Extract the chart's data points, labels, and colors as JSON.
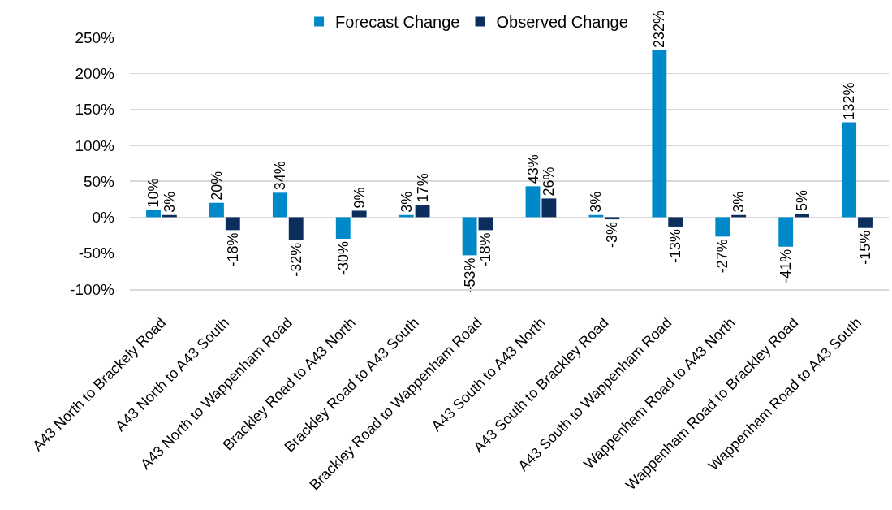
{
  "chart_data": {
    "type": "bar",
    "categories": [
      "A43 North to Brackely Road",
      "A43 North to A43 South",
      "A43 North to Wappenham Road",
      "Brackley Road to A43 North",
      "Brackley Road to A43 South",
      "Brackley Road to Wappenham Road",
      "A43 South to A43 North",
      "A43 South to Brackley Road",
      "A43 South to Wappenham Road",
      "Wappenham Road to A43 North",
      "Wappenham Road to Brackley Road",
      "Wappenham Road to A43 South"
    ],
    "series": [
      {
        "name": "Forecast Change",
        "color": "#0089c9",
        "values": [
          10,
          20,
          34,
          -30,
          3,
          -53,
          43,
          3,
          232,
          -27,
          -41,
          132
        ],
        "value_labels": [
          "10%",
          "20%",
          "34%",
          "-30%",
          "3%",
          "-53%",
          "43%",
          "3%",
          "232%",
          "-27%",
          "-41%",
          "132%"
        ]
      },
      {
        "name": "Observed Change",
        "color": "#0b2e5c",
        "values": [
          3,
          -18,
          -32,
          9,
          17,
          -18,
          26,
          -3,
          -13,
          3,
          5,
          -15
        ],
        "value_labels": [
          "3%",
          "-18%",
          "-32%",
          "9%",
          "17%",
          "-18%",
          "26%",
          "-3%",
          "-13%",
          "3%",
          "5%",
          "-15%"
        ]
      }
    ],
    "ylim": [
      -100,
      250
    ],
    "yticks": [
      {
        "value": -100,
        "label": "-100%"
      },
      {
        "value": -50,
        "label": "-50%"
      },
      {
        "value": 0,
        "label": "0%"
      },
      {
        "value": 50,
        "label": "50%"
      },
      {
        "value": 100,
        "label": "100%"
      },
      {
        "value": 150,
        "label": "150%"
      },
      {
        "value": 200,
        "label": "200%"
      },
      {
        "value": 250,
        "label": "250%"
      }
    ],
    "grid": "y",
    "legend": "top"
  }
}
